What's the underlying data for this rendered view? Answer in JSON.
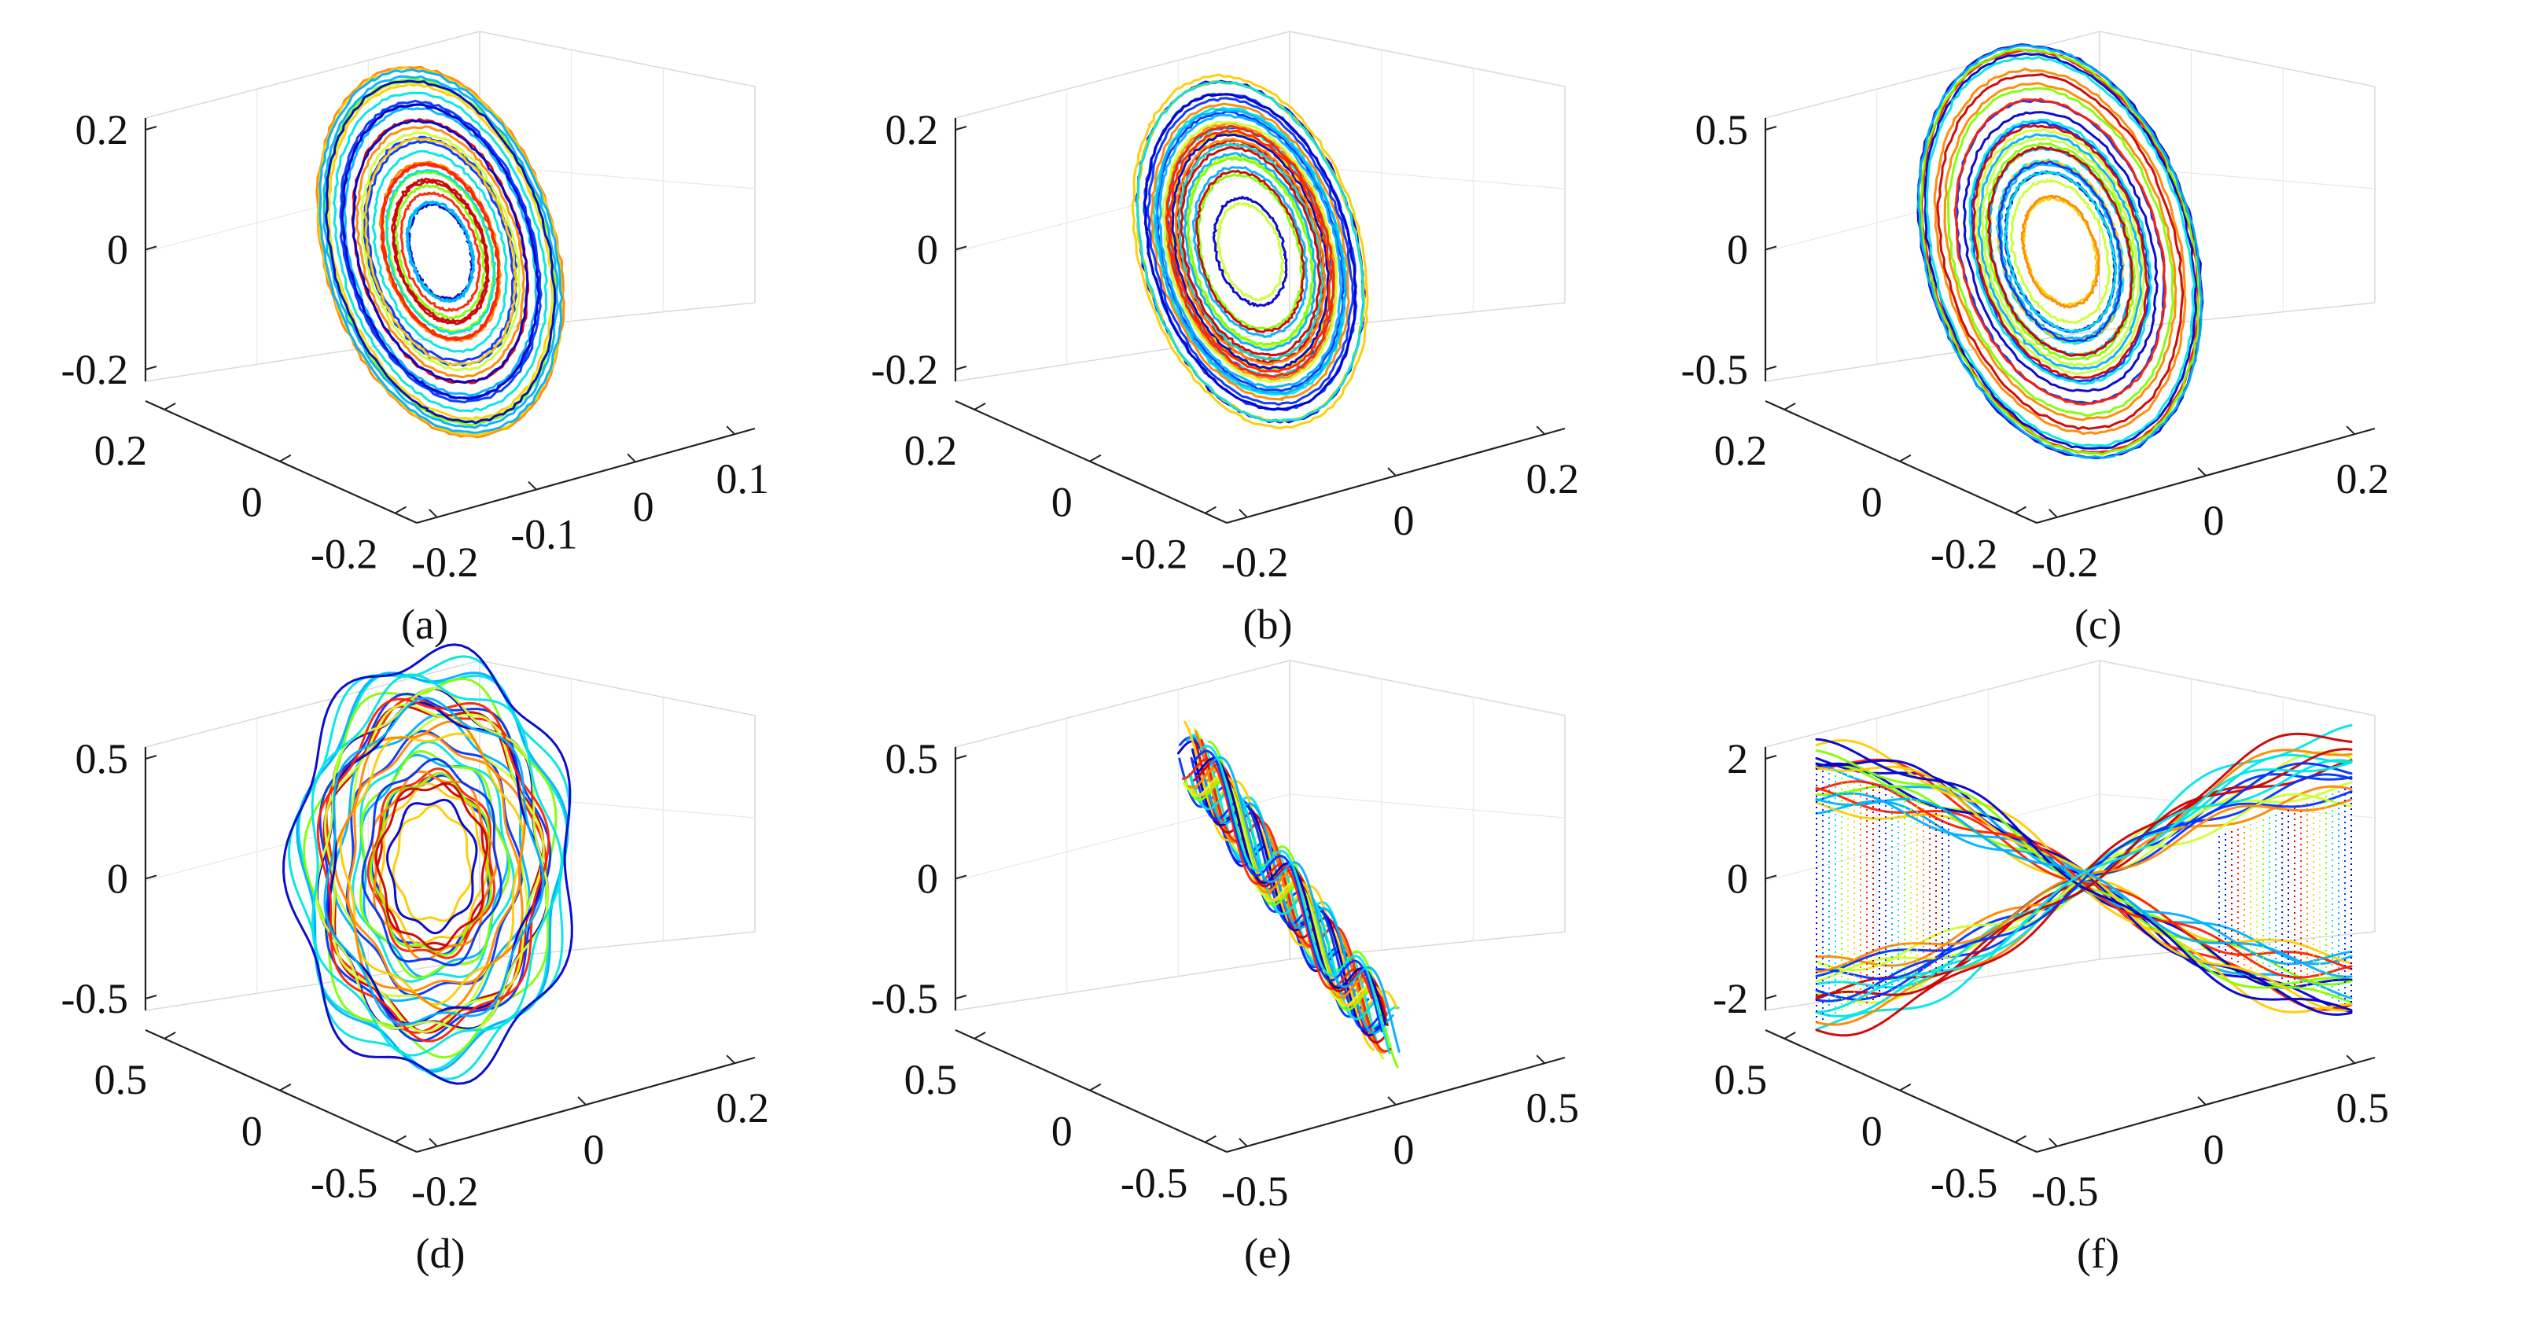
{
  "chart_data": [
    {
      "type": "line3d",
      "caption": "(a)",
      "shape": "ellipse",
      "xticks": [
        "-0.2",
        "-0.1",
        "0",
        "0.1"
      ],
      "yticks": [
        "-0.2",
        "0",
        "0.2"
      ],
      "zticks": [
        "-0.2",
        "0",
        "0.2"
      ],
      "xlim": [
        -0.2,
        0.15
      ],
      "ylim": [
        -0.3,
        0.3
      ],
      "zlim": [
        -0.25,
        0.25
      ],
      "colors": [
        "#0000cc",
        "#0033ff",
        "#00b0ff",
        "#00e5e5",
        "#7fff00",
        "#ccff33",
        "#ffcc00",
        "#ff8800",
        "#ff2200",
        "#cc0000"
      ]
    },
    {
      "type": "line3d",
      "caption": "(b)",
      "shape": "ellipse",
      "xticks": [
        "-0.2",
        "0",
        "0.2"
      ],
      "yticks": [
        "-0.2",
        "0",
        "0.2"
      ],
      "zticks": [
        "-0.2",
        "0",
        "0.2"
      ],
      "xlim": [
        -0.25,
        0.25
      ],
      "ylim": [
        -0.3,
        0.3
      ],
      "zlim": [
        -0.3,
        0.3
      ],
      "colors": [
        "#0000cc",
        "#0033ff",
        "#00b0ff",
        "#00e5e5",
        "#7fff00",
        "#ccff33",
        "#ffcc00",
        "#ff8800",
        "#ff2200",
        "#cc0000"
      ]
    },
    {
      "type": "line3d",
      "caption": "(c)",
      "shape": "ellipse",
      "xticks": [
        "-0.2",
        "0",
        "0.2"
      ],
      "yticks": [
        "-0.2",
        "0",
        "0.2"
      ],
      "zticks": [
        "-0.5",
        "0",
        "0.5"
      ],
      "xlim": [
        -0.25,
        0.25
      ],
      "ylim": [
        -0.3,
        0.3
      ],
      "zlim": [
        -0.55,
        0.55
      ],
      "colors": [
        "#0000cc",
        "#0033ff",
        "#00b0ff",
        "#00e5e5",
        "#7fff00",
        "#ccff33",
        "#ffcc00",
        "#ff8800",
        "#ff2200",
        "#cc0000"
      ]
    },
    {
      "type": "line3d",
      "caption": "(d)",
      "shape": "wavy",
      "xticks": [
        "-0.2",
        "0",
        "0.2"
      ],
      "yticks": [
        "-0.5",
        "0",
        "0.5"
      ],
      "zticks": [
        "-0.5",
        "0",
        "0.5"
      ],
      "xlim": [
        -0.25,
        0.25
      ],
      "ylim": [
        -0.6,
        0.6
      ],
      "zlim": [
        -0.6,
        0.6
      ],
      "colors": [
        "#0000cc",
        "#0033ff",
        "#00b0ff",
        "#00e5e5",
        "#7fff00",
        "#ccff33",
        "#ffcc00",
        "#ff8800",
        "#ff2200",
        "#cc0000"
      ]
    },
    {
      "type": "line3d",
      "caption": "(e)",
      "shape": "band",
      "xticks": [
        "-0.5",
        "0",
        "0.5"
      ],
      "yticks": [
        "-0.5",
        "0",
        "0.5"
      ],
      "zticks": [
        "-0.5",
        "0",
        "0.5"
      ],
      "xlim": [
        -0.6,
        0.6
      ],
      "ylim": [
        -0.6,
        0.6
      ],
      "zlim": [
        -0.55,
        0.55
      ],
      "colors": [
        "#0000cc",
        "#0033ff",
        "#00b0ff",
        "#00e5e5",
        "#7fff00",
        "#ccff33",
        "#ffcc00",
        "#ff8800",
        "#ff2200",
        "#cc0000"
      ]
    },
    {
      "type": "line3d",
      "caption": "(f)",
      "shape": "twist",
      "xticks": [
        "-0.5",
        "0",
        "0.5"
      ],
      "yticks": [
        "-0.5",
        "0",
        "0.5"
      ],
      "zticks": [
        "-2",
        "0",
        "2"
      ],
      "xlim": [
        -0.6,
        0.6
      ],
      "ylim": [
        -0.6,
        0.6
      ],
      "zlim": [
        -2.2,
        2.2
      ],
      "colors": [
        "#0000cc",
        "#0033ff",
        "#00b0ff",
        "#00e5e5",
        "#7fff00",
        "#ccff33",
        "#ffcc00",
        "#ff8800",
        "#ff2200",
        "#cc0000"
      ]
    }
  ]
}
